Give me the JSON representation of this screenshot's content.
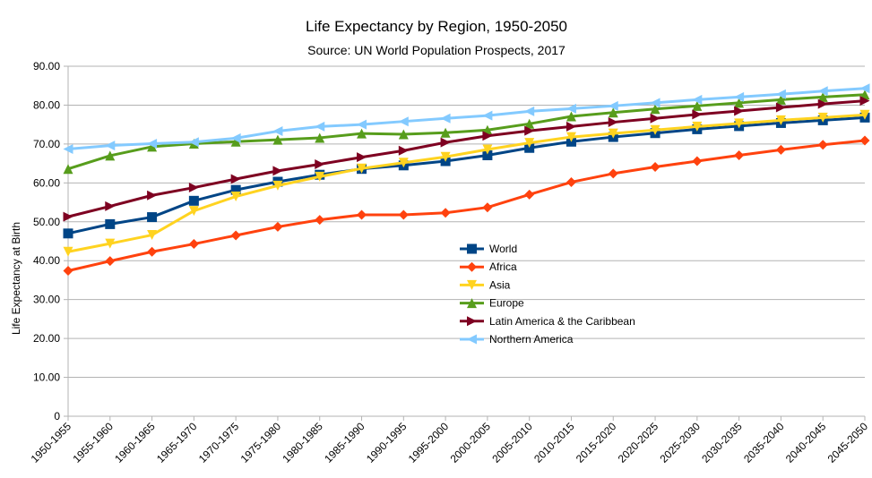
{
  "chart_data": {
    "type": "line",
    "title": "Life Expectancy by Region, 1950-2050",
    "subtitle": "Source: UN World Population Prospects, 2017",
    "xlabel": "",
    "ylabel": "Life Expectancy at Birth",
    "ylim": [
      0,
      90
    ],
    "yticks": [
      "0",
      "10.00",
      "20.00",
      "30.00",
      "40.00",
      "50.00",
      "60.00",
      "70.00",
      "80.00",
      "90.00"
    ],
    "grid": true,
    "legend_position": "center",
    "categories": [
      "1950-1955",
      "1955-1960",
      "1960-1965",
      "1965-1970",
      "1970-1975",
      "1975-1980",
      "1980-1985",
      "1985-1990",
      "1990-1995",
      "1995-2000",
      "2000-2005",
      "2005-2010",
      "2010-2015",
      "2015-2020",
      "2020-2025",
      "2025-2030",
      "2030-2035",
      "2035-2040",
      "2040-2045",
      "2045-2050"
    ],
    "series": [
      {
        "name": "World",
        "color": "#004586",
        "marker": "square",
        "values": [
          47.0,
          49.4,
          51.2,
          55.4,
          58.2,
          60.3,
          62.1,
          63.6,
          64.5,
          65.6,
          67.1,
          69.0,
          70.6,
          71.8,
          72.8,
          73.8,
          74.6,
          75.4,
          76.1,
          76.8
        ]
      },
      {
        "name": "Africa",
        "color": "#ff420e",
        "marker": "diamond",
        "values": [
          37.4,
          39.9,
          42.3,
          44.3,
          46.5,
          48.7,
          50.5,
          51.8,
          51.8,
          52.3,
          53.7,
          57.0,
          60.2,
          62.4,
          64.1,
          65.6,
          67.1,
          68.5,
          69.8,
          70.9
        ]
      },
      {
        "name": "Asia",
        "color": "#ffd320",
        "marker": "triangle-down",
        "values": [
          42.3,
          44.4,
          46.6,
          52.8,
          56.5,
          59.3,
          61.6,
          63.7,
          65.2,
          66.7,
          68.6,
          70.3,
          71.8,
          72.7,
          73.6,
          74.5,
          75.3,
          76.1,
          76.8,
          77.5
        ]
      },
      {
        "name": "Europe",
        "color": "#579d1c",
        "marker": "triangle-up",
        "values": [
          63.6,
          67.0,
          69.3,
          70.1,
          70.6,
          71.1,
          71.6,
          72.7,
          72.5,
          72.9,
          73.6,
          75.2,
          77.1,
          78.1,
          79.0,
          79.8,
          80.6,
          81.4,
          82.1,
          82.7
        ]
      },
      {
        "name": "Latin America & the Caribbean",
        "color": "#7e0021",
        "marker": "triangle-right",
        "values": [
          51.3,
          54.0,
          56.8,
          58.8,
          61.0,
          63.1,
          64.8,
          66.6,
          68.3,
          70.4,
          72.1,
          73.4,
          74.5,
          75.6,
          76.6,
          77.6,
          78.5,
          79.4,
          80.3,
          81.1
        ]
      },
      {
        "name": "Northern America",
        "color": "#83caff",
        "marker": "triangle-left",
        "values": [
          68.7,
          69.6,
          70.1,
          70.5,
          71.5,
          73.3,
          74.5,
          75.0,
          75.8,
          76.6,
          77.3,
          78.4,
          79.1,
          79.8,
          80.6,
          81.4,
          82.1,
          82.8,
          83.6,
          84.3
        ]
      }
    ]
  }
}
